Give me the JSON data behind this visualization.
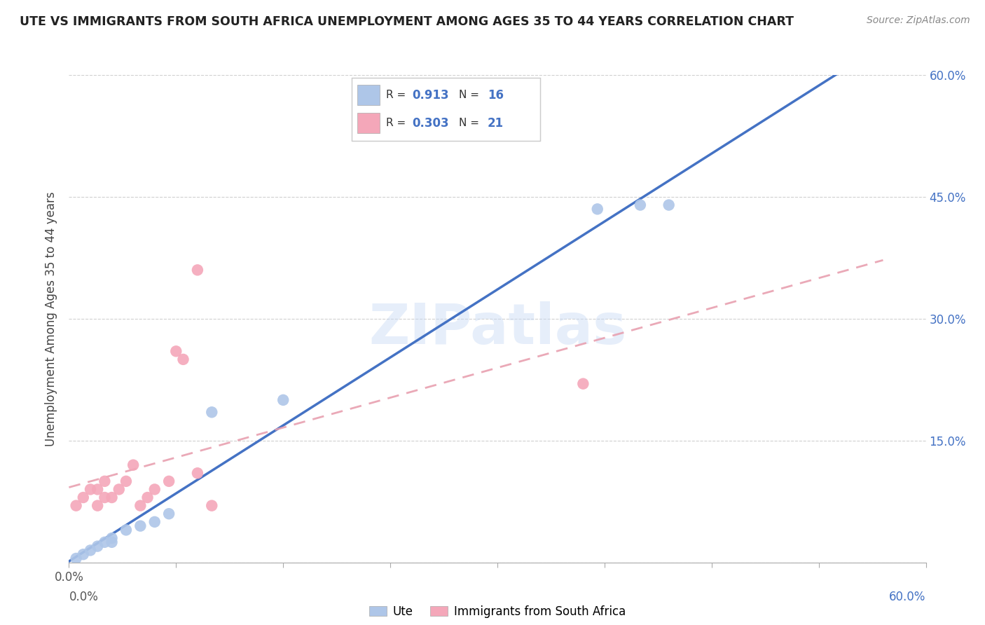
{
  "title": "UTE VS IMMIGRANTS FROM SOUTH AFRICA UNEMPLOYMENT AMONG AGES 35 TO 44 YEARS CORRELATION CHART",
  "source": "Source: ZipAtlas.com",
  "ylabel": "Unemployment Among Ages 35 to 44 years",
  "xlim": [
    0.0,
    0.6
  ],
  "ylim": [
    0.0,
    0.6
  ],
  "xticks": [
    0.0,
    0.075,
    0.15,
    0.225,
    0.3,
    0.375,
    0.45,
    0.525,
    0.6
  ],
  "yticks": [
    0.0,
    0.15,
    0.3,
    0.45,
    0.6
  ],
  "ytick_labels_right": [
    "",
    "15.0%",
    "30.0%",
    "45.0%",
    "60.0%"
  ],
  "legend_labels": [
    "Ute",
    "Immigrants from South Africa"
  ],
  "blue_color": "#aec6e8",
  "pink_color": "#f4a7b9",
  "blue_line_color": "#4472c4",
  "pink_line_color": "#e8a0b0",
  "R_blue": 0.913,
  "N_blue": 16,
  "R_pink": 0.303,
  "N_pink": 21,
  "blue_points_x": [
    0.005,
    0.01,
    0.015,
    0.02,
    0.025,
    0.03,
    0.03,
    0.04,
    0.05,
    0.06,
    0.07,
    0.1,
    0.15,
    0.37,
    0.4,
    0.42
  ],
  "blue_points_y": [
    0.005,
    0.01,
    0.015,
    0.02,
    0.025,
    0.025,
    0.03,
    0.04,
    0.045,
    0.05,
    0.06,
    0.185,
    0.2,
    0.435,
    0.44,
    0.44
  ],
  "pink_points_x": [
    0.005,
    0.01,
    0.015,
    0.02,
    0.02,
    0.025,
    0.025,
    0.03,
    0.035,
    0.04,
    0.045,
    0.05,
    0.055,
    0.06,
    0.07,
    0.075,
    0.08,
    0.09,
    0.09,
    0.1,
    0.36
  ],
  "pink_points_y": [
    0.07,
    0.08,
    0.09,
    0.07,
    0.09,
    0.08,
    0.1,
    0.08,
    0.09,
    0.1,
    0.12,
    0.07,
    0.08,
    0.09,
    0.1,
    0.26,
    0.25,
    0.36,
    0.11,
    0.07,
    0.22
  ],
  "watermark": "ZIPatlas",
  "background_color": "#ffffff",
  "grid_color": "#d0d0d0"
}
